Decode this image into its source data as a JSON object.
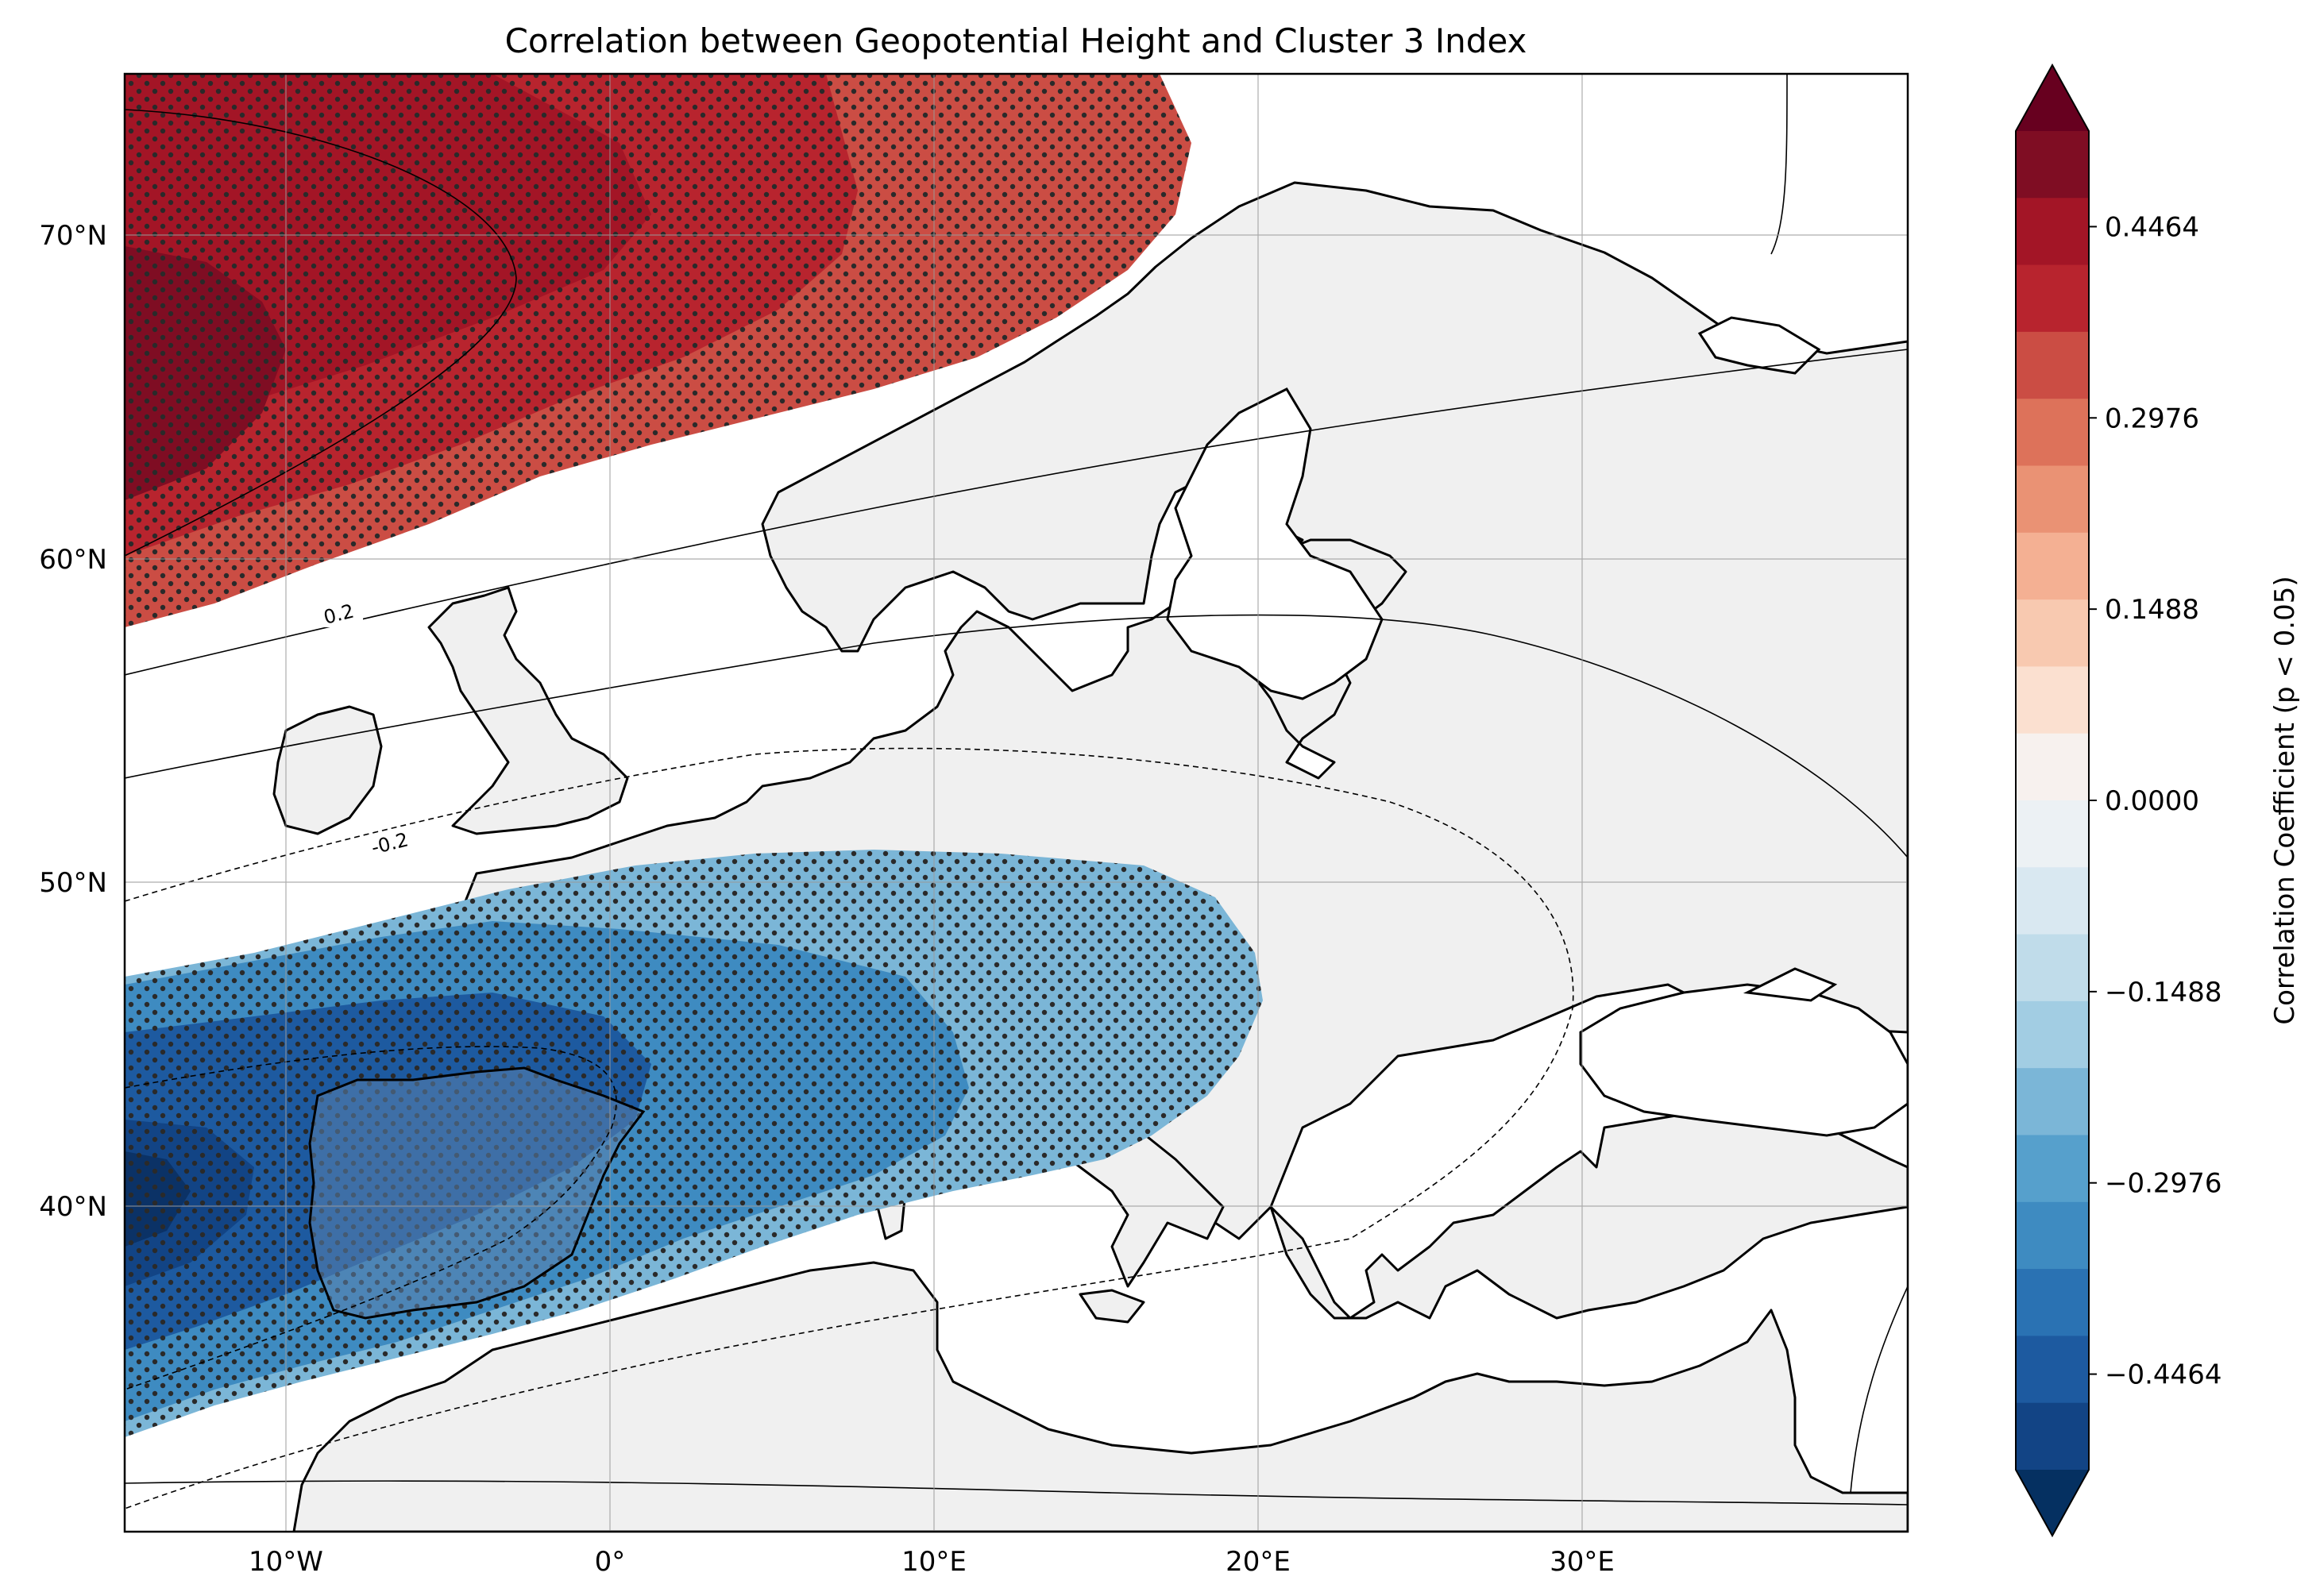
{
  "title": "Correlation between Geopotential Height and Cluster 3 Index",
  "map": {
    "lon_range": [
      -15,
      40
    ],
    "lat_range": [
      30,
      75
    ],
    "lon_ticks": [
      {
        "value": -10,
        "label": "10°W"
      },
      {
        "value": 0,
        "label": "0°"
      },
      {
        "value": 10,
        "label": "10°E"
      },
      {
        "value": 20,
        "label": "20°E"
      },
      {
        "value": 30,
        "label": "30°E"
      }
    ],
    "lat_ticks": [
      {
        "value": 40,
        "label": "40°N"
      },
      {
        "value": 50,
        "label": "50°N"
      },
      {
        "value": 60,
        "label": "60°N"
      },
      {
        "value": 70,
        "label": "70°N"
      }
    ],
    "contour_labels": [
      "0.2",
      "-0.2"
    ],
    "hatch": "dots where p < 0.05",
    "gridlines": true,
    "land_color": "#f0f0f0",
    "ocean_color": "#ffffff"
  },
  "colorbar": {
    "label": "Correlation Coefficient (p < 0.05)",
    "ticks": [
      "0.4464",
      "0.2976",
      "0.1488",
      "0.0000",
      "−0.1488",
      "−0.2976",
      "−0.4464"
    ],
    "tick_values": [
      0.4464,
      0.2976,
      0.1488,
      0.0,
      -0.1488,
      -0.2976,
      -0.4464
    ],
    "levels_min": -0.5208,
    "levels_max": 0.5208,
    "colors_top_to_bottom": [
      "#7f0d23",
      "#a31526",
      "#b8242e",
      "#cb4d44",
      "#dd725a",
      "#ea9274",
      "#f4b093",
      "#f8c9b0",
      "#fbe0d0",
      "#f7f1ee",
      "#ecf1f4",
      "#d9e8f1",
      "#c0dcea",
      "#a2cde3",
      "#7bb6d7",
      "#56a0cc",
      "#3e8bc1",
      "#2a72b3",
      "#1d5aa0",
      "#124485"
    ],
    "extend_max_color": "#67001f",
    "extend_min_color": "#053061"
  }
}
